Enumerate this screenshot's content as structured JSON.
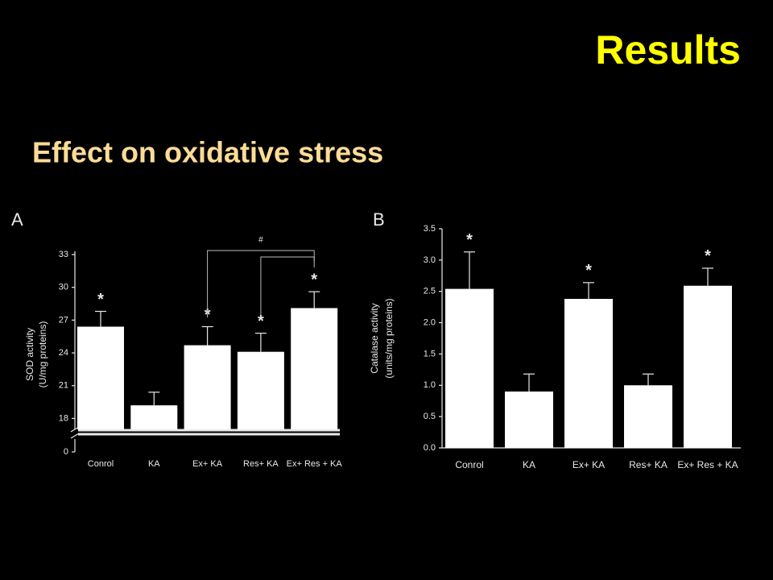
{
  "slide": {
    "title": "Results",
    "heading": "Effect on oxidative stress"
  },
  "chart_data": [
    {
      "type": "bar",
      "panel": "A",
      "ylabel": [
        "SOD activity",
        "(U/mg proteins)"
      ],
      "categories": [
        "Conrol",
        "KA",
        "Ex+ KA",
        "Res+ KA",
        "Ex+ Res + KA"
      ],
      "values": [
        26.4,
        19.2,
        24.7,
        24.1,
        28.1
      ],
      "errors": [
        1.4,
        1.2,
        1.7,
        1.7,
        1.5
      ],
      "color": "#ffffff",
      "ylim": [
        0,
        33
      ],
      "axis_break": [
        0,
        17
      ],
      "yticks": [
        0,
        18,
        21,
        24,
        27,
        30,
        33
      ],
      "annotations": [
        {
          "text": "*",
          "category": 0
        },
        {
          "text": "*",
          "category": 2
        },
        {
          "text": "*",
          "category": 3
        },
        {
          "text": "*",
          "category": 4
        },
        {
          "text": "#",
          "from": [
            2,
            3
          ],
          "to": 4
        }
      ]
    },
    {
      "type": "bar",
      "panel": "B",
      "ylabel": [
        "Catalase activity",
        "(units/mg proteins)"
      ],
      "categories": [
        "Conrol",
        "KA",
        "Ex+ KA",
        "Res+ KA",
        "Ex+ Res + KA"
      ],
      "values": [
        2.54,
        0.9,
        2.38,
        1.0,
        2.59
      ],
      "errors": [
        0.59,
        0.28,
        0.26,
        0.18,
        0.28
      ],
      "color": "#ffffff",
      "ylim": [
        0,
        3.5
      ],
      "yticks": [
        {
          "value": 0,
          "label": "0.0"
        },
        0.5,
        {
          "value": 1,
          "label": "1.0"
        },
        1.5,
        {
          "value": 2,
          "label": "2.0"
        },
        2.5,
        {
          "value": 3,
          "label": "3.0"
        },
        3.5
      ],
      "annotations": [
        {
          "text": "*",
          "category": 0
        },
        {
          "text": "*",
          "category": 2
        },
        {
          "text": "*",
          "category": 4
        }
      ]
    }
  ]
}
